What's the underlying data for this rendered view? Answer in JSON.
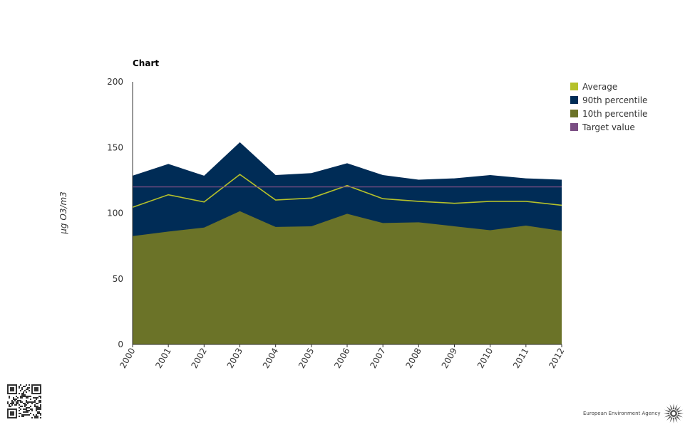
{
  "chart_data": {
    "type": "area",
    "title": "Chart",
    "xlabel": "",
    "ylabel": "μg O3/m3",
    "x": [
      "2000",
      "2001",
      "2002",
      "2003",
      "2004",
      "2005",
      "2006",
      "2007",
      "2008",
      "2009",
      "2010",
      "2011",
      "2012"
    ],
    "ylim": [
      0,
      200
    ],
    "yticks": [
      0,
      50,
      100,
      150,
      200
    ],
    "series": [
      {
        "name": "Average",
        "type": "line",
        "color": "#b5c12a",
        "values": [
          104.5,
          114,
          108.5,
          129.5,
          110,
          111.5,
          121,
          111,
          109,
          107.5,
          109,
          109,
          106
        ]
      },
      {
        "name": "90th percentile",
        "type": "area",
        "color": "#002c56",
        "values": [
          128.5,
          137.5,
          128.5,
          154,
          129,
          130.5,
          138,
          129,
          125.5,
          126.5,
          129,
          126.5,
          125.5
        ]
      },
      {
        "name": "10th percentile",
        "type": "area",
        "color": "#6b7328",
        "values": [
          82.5,
          86,
          89,
          101.5,
          89.5,
          90,
          99.5,
          92.5,
          93,
          90,
          87,
          90.5,
          86.5
        ]
      },
      {
        "name": "Target value",
        "type": "line",
        "color": "#7a4e83",
        "values": [
          120,
          120,
          120,
          120,
          120,
          120,
          120,
          120,
          120,
          120,
          120,
          120,
          120
        ]
      }
    ],
    "grid": false,
    "legend_position": "top-right"
  },
  "footer": {
    "brand": "European Environment Agency",
    "logo_icon": "eea-sun-icon",
    "qr_icon": "qr-code-icon"
  }
}
